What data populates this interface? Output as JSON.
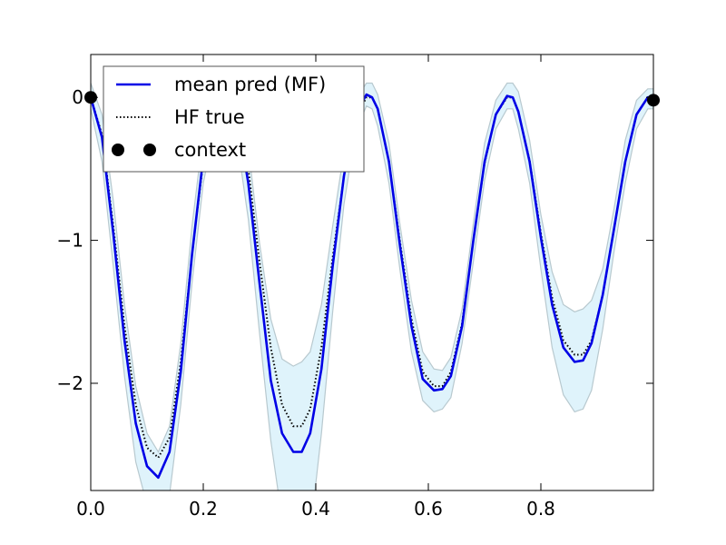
{
  "chart_data": {
    "type": "line",
    "title": "",
    "xlabel": "",
    "ylabel": "",
    "xlim": [
      0.0,
      1.0
    ],
    "ylim": [
      -2.75,
      0.3
    ],
    "xticks": [
      0.0,
      0.2,
      0.4,
      0.6,
      0.8
    ],
    "xtick_labels": [
      "0.0",
      "0.2",
      "0.4",
      "0.6",
      "0.8"
    ],
    "yticks": [
      0,
      -1,
      -2
    ],
    "ytick_labels": [
      "0",
      "−1",
      "−2"
    ],
    "grid": false,
    "legend_placement": "top-left",
    "colors": {
      "mean": "#0000e6",
      "band_fill": "#dff3fb",
      "band_edge": "#b8c9cf",
      "true": "#000000",
      "context": "#000000"
    },
    "series": [
      {
        "name": "mean pred (MF)",
        "style": "solid",
        "x": [
          0.0,
          0.02,
          0.04,
          0.06,
          0.08,
          0.1,
          0.12,
          0.14,
          0.16,
          0.18,
          0.2,
          0.22,
          0.24,
          0.25,
          0.26,
          0.28,
          0.3,
          0.32,
          0.34,
          0.36,
          0.375,
          0.39,
          0.41,
          0.43,
          0.45,
          0.47,
          0.49,
          0.5,
          0.51,
          0.53,
          0.55,
          0.57,
          0.59,
          0.61,
          0.625,
          0.64,
          0.66,
          0.68,
          0.7,
          0.72,
          0.74,
          0.75,
          0.76,
          0.78,
          0.8,
          0.82,
          0.84,
          0.86,
          0.875,
          0.89,
          0.91,
          0.93,
          0.95,
          0.97,
          0.99,
          1.0
        ],
        "values": [
          0.0,
          -0.28,
          -0.95,
          -1.7,
          -2.28,
          -2.58,
          -2.66,
          -2.48,
          -1.92,
          -1.1,
          -0.42,
          -0.08,
          0.02,
          -0.02,
          -0.12,
          -0.6,
          -1.3,
          -1.98,
          -2.35,
          -2.48,
          -2.48,
          -2.35,
          -1.9,
          -1.18,
          -0.55,
          -0.12,
          0.02,
          0.0,
          -0.08,
          -0.45,
          -1.05,
          -1.6,
          -1.97,
          -2.05,
          -2.04,
          -1.95,
          -1.6,
          -1.0,
          -0.45,
          -0.12,
          0.01,
          0.0,
          -0.1,
          -0.45,
          -0.98,
          -1.45,
          -1.75,
          -1.85,
          -1.84,
          -1.72,
          -1.38,
          -0.92,
          -0.45,
          -0.12,
          0.0,
          0.0
        ]
      },
      {
        "name": "HF true",
        "style": "dotted",
        "x": [
          0.0,
          0.02,
          0.04,
          0.06,
          0.08,
          0.1,
          0.12,
          0.14,
          0.16,
          0.18,
          0.2,
          0.22,
          0.24,
          0.25,
          0.26,
          0.28,
          0.3,
          0.32,
          0.34,
          0.36,
          0.375,
          0.39,
          0.41,
          0.43,
          0.45,
          0.47,
          0.49,
          0.5,
          0.51,
          0.53,
          0.55,
          0.57,
          0.59,
          0.61,
          0.625,
          0.64,
          0.66,
          0.68,
          0.7,
          0.72,
          0.74,
          0.75,
          0.76,
          0.78,
          0.8,
          0.82,
          0.84,
          0.86,
          0.875,
          0.89,
          0.91,
          0.93,
          0.95,
          0.97,
          0.99,
          1.0
        ],
        "values": [
          0.0,
          -0.26,
          -0.9,
          -1.6,
          -2.15,
          -2.45,
          -2.52,
          -2.38,
          -1.85,
          -1.1,
          -0.45,
          -0.1,
          0.0,
          0.0,
          -0.08,
          -0.5,
          -1.15,
          -1.75,
          -2.15,
          -2.3,
          -2.3,
          -2.18,
          -1.75,
          -1.12,
          -0.55,
          -0.15,
          0.0,
          0.0,
          -0.08,
          -0.45,
          -1.02,
          -1.55,
          -1.92,
          -2.02,
          -2.02,
          -1.92,
          -1.58,
          -1.0,
          -0.46,
          -0.12,
          0.0,
          0.0,
          -0.1,
          -0.44,
          -0.95,
          -1.4,
          -1.7,
          -1.8,
          -1.8,
          -1.7,
          -1.38,
          -0.92,
          -0.45,
          -0.12,
          0.0,
          0.0
        ]
      }
    ],
    "band": {
      "x": [
        0.0,
        0.02,
        0.04,
        0.06,
        0.08,
        0.1,
        0.12,
        0.14,
        0.16,
        0.18,
        0.2,
        0.22,
        0.24,
        0.25,
        0.26,
        0.28,
        0.3,
        0.32,
        0.34,
        0.36,
        0.375,
        0.39,
        0.41,
        0.43,
        0.45,
        0.47,
        0.49,
        0.5,
        0.51,
        0.53,
        0.55,
        0.57,
        0.59,
        0.61,
        0.625,
        0.64,
        0.66,
        0.68,
        0.7,
        0.72,
        0.74,
        0.75,
        0.76,
        0.78,
        0.8,
        0.82,
        0.84,
        0.86,
        0.875,
        0.89,
        0.91,
        0.93,
        0.95,
        0.97,
        0.99,
        1.0
      ],
      "upper": [
        0.1,
        -0.12,
        -0.72,
        -1.45,
        -2.02,
        -2.35,
        -2.48,
        -2.3,
        -1.72,
        -0.9,
        -0.25,
        0.06,
        0.12,
        0.1,
        0.05,
        -0.35,
        -1.02,
        -1.55,
        -1.83,
        -1.88,
        -1.85,
        -1.78,
        -1.45,
        -0.9,
        -0.38,
        -0.02,
        0.1,
        0.1,
        0.02,
        -0.32,
        -0.9,
        -1.42,
        -1.78,
        -1.9,
        -1.91,
        -1.82,
        -1.48,
        -0.88,
        -0.32,
        -0.02,
        0.1,
        0.1,
        0.04,
        -0.3,
        -0.82,
        -1.22,
        -1.45,
        -1.5,
        -1.48,
        -1.42,
        -1.2,
        -0.78,
        -0.3,
        -0.02,
        0.06,
        0.06
      ],
      "lower": [
        -0.08,
        -0.45,
        -1.18,
        -1.95,
        -2.55,
        -2.85,
        -2.95,
        -2.78,
        -2.15,
        -1.3,
        -0.6,
        -0.22,
        -0.08,
        -0.1,
        -0.3,
        -0.85,
        -1.65,
        -2.4,
        -2.95,
        -3.25,
        -3.3,
        -3.05,
        -2.35,
        -1.5,
        -0.75,
        -0.25,
        -0.06,
        -0.08,
        -0.2,
        -0.6,
        -1.22,
        -1.78,
        -2.12,
        -2.2,
        -2.18,
        -2.1,
        -1.72,
        -1.15,
        -0.58,
        -0.22,
        -0.08,
        -0.08,
        -0.22,
        -0.6,
        -1.2,
        -1.75,
        -2.08,
        -2.2,
        -2.18,
        -2.05,
        -1.62,
        -1.08,
        -0.6,
        -0.22,
        -0.08,
        -0.08
      ]
    },
    "context_points": {
      "name": "context",
      "x": [
        0.0,
        1.0
      ],
      "y": [
        0.0,
        -0.02
      ]
    }
  }
}
